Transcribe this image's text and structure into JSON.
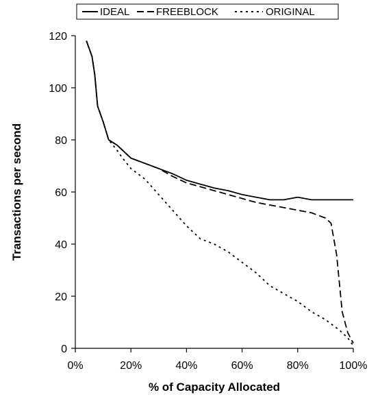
{
  "chart_data": {
    "type": "line",
    "xlabel": "% of Capacity Allocated",
    "ylabel": "Transactions per second",
    "xlim": [
      0,
      100
    ],
    "ylim": [
      0,
      120
    ],
    "x_ticks": [
      0,
      20,
      40,
      60,
      80,
      100
    ],
    "x_tick_labels": [
      "0%",
      "20%",
      "40%",
      "60%",
      "80%",
      "100%"
    ],
    "y_ticks": [
      0,
      20,
      40,
      60,
      80,
      100,
      120
    ],
    "y_tick_labels": [
      "0",
      "20",
      "40",
      "60",
      "80",
      "100",
      "120"
    ],
    "grid": false,
    "legend_position": "top",
    "series": [
      {
        "name": "IDEAL",
        "style": "solid",
        "x": [
          4,
          6,
          7,
          8,
          10,
          12,
          15,
          17,
          20,
          25,
          30,
          35,
          40,
          45,
          50,
          55,
          60,
          65,
          70,
          75,
          80,
          85,
          90,
          95,
          100
        ],
        "y": [
          118,
          112,
          105,
          93,
          87,
          80,
          78,
          76,
          73,
          71,
          69,
          67,
          64.5,
          63,
          61.5,
          60.5,
          59,
          58,
          57,
          57,
          58,
          57,
          57,
          57,
          57
        ]
      },
      {
        "name": "FREEBLOCK",
        "style": "dashed",
        "x": [
          4,
          6,
          7,
          8,
          10,
          12,
          15,
          17,
          20,
          25,
          30,
          35,
          40,
          45,
          50,
          55,
          60,
          65,
          70,
          75,
          80,
          85,
          90,
          92,
          94,
          96,
          98,
          100
        ],
        "y": [
          118,
          112,
          105,
          93,
          87,
          80,
          78,
          76,
          73,
          71,
          69,
          66,
          63.5,
          62,
          60.5,
          59,
          57.5,
          56,
          55,
          54,
          53,
          52,
          50,
          48,
          36,
          14,
          6,
          2
        ]
      },
      {
        "name": "ORIGINAL",
        "style": "dotted",
        "x": [
          4,
          6,
          7,
          8,
          10,
          12,
          15,
          17,
          20,
          25,
          30,
          35,
          40,
          45,
          50,
          55,
          60,
          65,
          70,
          75,
          80,
          85,
          90,
          95,
          98,
          100
        ],
        "y": [
          118,
          112,
          105,
          93,
          87,
          80,
          76,
          73,
          69,
          65,
          59,
          53,
          47,
          42,
          40,
          37,
          33,
          29,
          24,
          21,
          18,
          14,
          11,
          7,
          4,
          1
        ]
      }
    ]
  }
}
